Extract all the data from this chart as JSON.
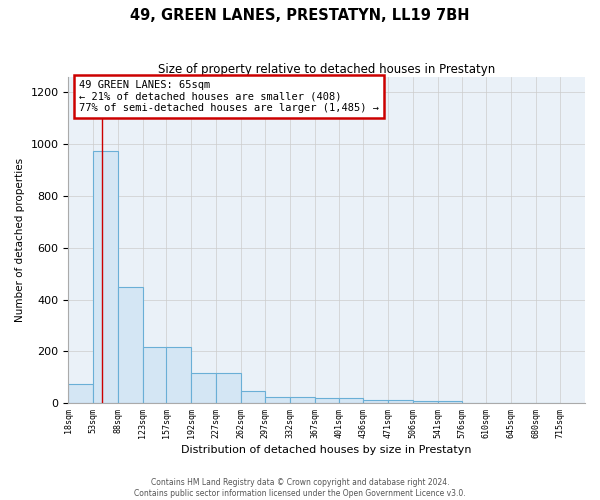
{
  "title": "49, GREEN LANES, PRESTATYN, LL19 7BH",
  "subtitle": "Size of property relative to detached houses in Prestatyn",
  "xlabel": "Distribution of detached houses by size in Prestatyn",
  "ylabel": "Number of detached properties",
  "bins": [
    18,
    53,
    88,
    123,
    157,
    192,
    227,
    262,
    297,
    332,
    367,
    401,
    436,
    471,
    506,
    541,
    576,
    610,
    645,
    680,
    715
  ],
  "counts": [
    75,
    975,
    450,
    215,
    215,
    115,
    115,
    48,
    25,
    25,
    20,
    20,
    12,
    12,
    10,
    8,
    0,
    0,
    0,
    0
  ],
  "ylim": [
    0,
    1260
  ],
  "yticks": [
    0,
    200,
    400,
    600,
    800,
    1000,
    1200
  ],
  "bar_facecolor": "#d4e6f4",
  "bar_edgecolor": "#6aafd6",
  "grid_color": "#cccccc",
  "background_color": "#eaf1f8",
  "property_line_x": 65,
  "annotation_title": "49 GREEN LANES: 65sqm",
  "annotation_line1": "← 21% of detached houses are smaller (408)",
  "annotation_line2": "77% of semi-detached houses are larger (1,485) →",
  "annotation_box_color": "#cc0000",
  "footnote1": "Contains HM Land Registry data © Crown copyright and database right 2024.",
  "footnote2": "Contains public sector information licensed under the Open Government Licence v3.0."
}
